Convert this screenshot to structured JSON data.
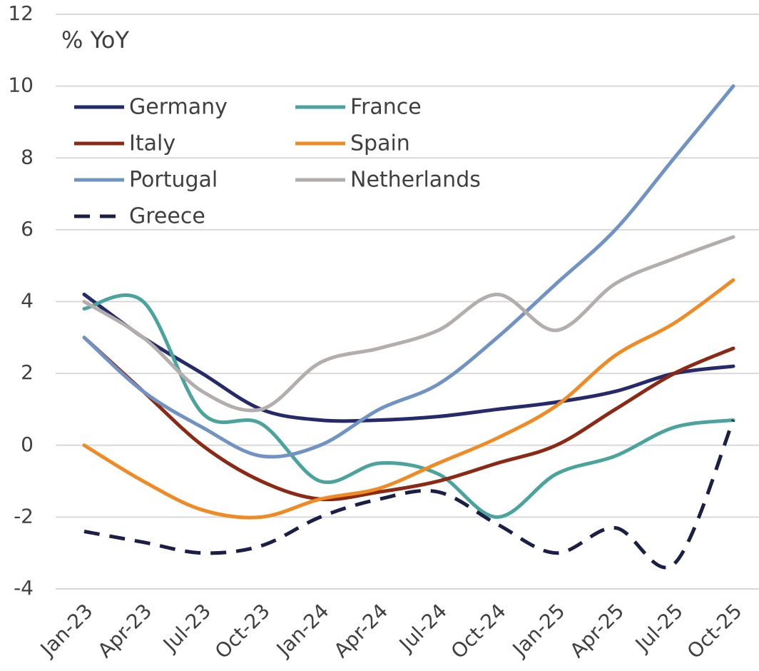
{
  "chart_data": {
    "type": "line",
    "ylabel": "% YoY",
    "categories": [
      "Jan-23",
      "Apr-23",
      "Jul-23",
      "Oct-23",
      "Jan-24",
      "Apr-24",
      "Jul-24",
      "Oct-24",
      "Jan-25",
      "Apr-25",
      "Jul-25",
      "Oct-25"
    ],
    "series": [
      {
        "name": "Germany",
        "color": "#262a6b",
        "values": [
          4.2,
          3.0,
          2.0,
          1.0,
          0.7,
          0.7,
          0.8,
          1.0,
          1.2,
          1.5,
          2.0,
          2.2
        ]
      },
      {
        "name": "France",
        "color": "#4aa39c",
        "values": [
          3.8,
          4.0,
          0.9,
          0.6,
          -1.0,
          -0.5,
          -0.8,
          -2.0,
          -0.8,
          -0.3,
          0.5,
          0.7
        ]
      },
      {
        "name": "Italy",
        "color": "#8b2914",
        "values": [
          3.0,
          1.5,
          0.0,
          -1.0,
          -1.5,
          -1.3,
          -1.0,
          -0.5,
          0.0,
          1.0,
          2.0,
          2.7
        ]
      },
      {
        "name": "Spain",
        "color": "#f08a24",
        "values": [
          0.0,
          -1.0,
          -1.8,
          -2.0,
          -1.5,
          -1.2,
          -0.5,
          0.2,
          1.1,
          2.5,
          3.4,
          4.6
        ]
      },
      {
        "name": "Portugal",
        "color": "#7193c4",
        "values": [
          3.0,
          1.5,
          0.5,
          -0.3,
          0.0,
          1.0,
          1.7,
          3.0,
          4.5,
          6.0,
          8.0,
          10.0
        ]
      },
      {
        "name": "Netherlands",
        "color": "#b3aeac",
        "values": [
          4.0,
          3.0,
          1.5,
          1.0,
          2.3,
          2.7,
          3.2,
          4.2,
          3.2,
          4.5,
          5.2,
          5.8
        ]
      },
      {
        "name": "Greece",
        "color": "#1c1f45",
        "dashed": true,
        "values": [
          -2.4,
          -2.7,
          -3.0,
          -2.8,
          -2.0,
          -1.5,
          -1.3,
          -2.2,
          -3.0,
          -2.3,
          -3.3,
          0.7
        ]
      }
    ],
    "ylim": [
      -4,
      12
    ],
    "yticks": [
      -4,
      -2,
      0,
      2,
      4,
      6,
      8,
      10,
      12
    ],
    "grid": true,
    "legend": "upper left"
  }
}
